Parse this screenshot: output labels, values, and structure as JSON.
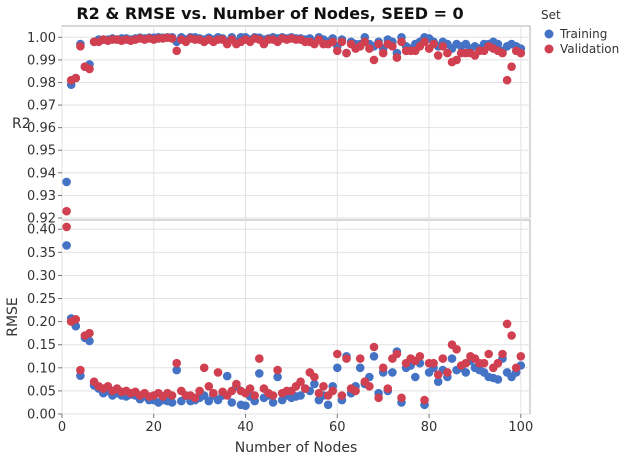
{
  "chart_data": [
    {
      "type": "scatter",
      "title": "R2 & RMSE vs. Number of Nodes, SEED = 0",
      "ylabel": "R2",
      "ylim": [
        0.92,
        1.005
      ],
      "yticks": [
        "1.00",
        "0.99",
        "0.98",
        "0.97",
        "0.96",
        "0.95",
        "0.94",
        "0.93",
        "0.92"
      ],
      "grid": true,
      "legend": {
        "title": "Set",
        "position": "top-right",
        "entries": [
          {
            "name": "Training",
            "color": "#4472C4"
          },
          {
            "name": "Validation",
            "color": "#D04050"
          }
        ]
      },
      "series": [
        {
          "name": "Training",
          "color": "#4472C4",
          "x": [
            1,
            2,
            3,
            4,
            5,
            6,
            7,
            8,
            9,
            10,
            11,
            12,
            13,
            14,
            15,
            16,
            17,
            18,
            19,
            20,
            21,
            22,
            23,
            24,
            25,
            26,
            27,
            28,
            29,
            30,
            31,
            32,
            33,
            34,
            35,
            36,
            37,
            38,
            39,
            40,
            41,
            42,
            43,
            44,
            45,
            46,
            47,
            48,
            49,
            50,
            51,
            52,
            53,
            54,
            55,
            56,
            57,
            58,
            59,
            60,
            61,
            62,
            63,
            64,
            65,
            66,
            67,
            68,
            69,
            70,
            71,
            72,
            73,
            74,
            75,
            76,
            77,
            78,
            79,
            80,
            81,
            82,
            83,
            84,
            85,
            86,
            87,
            88,
            89,
            90,
            91,
            92,
            93,
            94,
            95,
            96,
            97,
            98,
            99,
            100
          ],
          "y": [
            0.936,
            0.979,
            0.982,
            0.997,
            0.987,
            0.988,
            0.998,
            0.999,
            0.999,
            0.999,
            0.9995,
            0.999,
            0.9995,
            0.9995,
            0.999,
            0.9995,
            0.9998,
            0.9995,
            0.9998,
            0.9998,
            1.0,
            0.9998,
            1.0,
            1.0,
            0.998,
            1.0,
            0.999,
            1.0,
            1.0,
            0.9995,
            0.999,
            0.9998,
            0.999,
            1.0,
            0.9995,
            0.998,
            1.0,
            0.998,
            1.0,
            1.0,
            0.999,
            1.0,
            0.9998,
            0.999,
            0.9995,
            1.0,
            0.9995,
            1.0,
            0.9995,
            1.0,
            0.9995,
            0.9995,
            0.999,
            0.9995,
            0.998,
            1.0,
            0.999,
            0.998,
            0.9995,
            0.996,
            0.999,
            0.993,
            0.998,
            0.997,
            0.997,
            1.0,
            0.997,
            0.996,
            0.998,
            0.995,
            0.999,
            0.998,
            0.993,
            1.0,
            0.996,
            0.995,
            0.997,
            0.998,
            1.0,
            0.9995,
            0.998,
            0.996,
            0.998,
            0.997,
            0.995,
            0.997,
            0.996,
            0.997,
            0.995,
            0.996,
            0.995,
            0.997,
            0.997,
            0.998,
            0.997,
            0.994,
            0.996,
            0.997,
            0.996,
            0.995
          ]
        },
        {
          "name": "Validation",
          "color": "#D04050",
          "x": [
            1,
            2,
            3,
            4,
            5,
            6,
            7,
            8,
            9,
            10,
            11,
            12,
            13,
            14,
            15,
            16,
            17,
            18,
            19,
            20,
            21,
            22,
            23,
            24,
            25,
            26,
            27,
            28,
            29,
            30,
            31,
            32,
            33,
            34,
            35,
            36,
            37,
            38,
            39,
            40,
            41,
            42,
            43,
            44,
            45,
            46,
            47,
            48,
            49,
            50,
            51,
            52,
            53,
            54,
            55,
            56,
            57,
            58,
            59,
            60,
            61,
            62,
            63,
            64,
            65,
            66,
            67,
            68,
            69,
            70,
            71,
            72,
            73,
            74,
            75,
            76,
            77,
            78,
            79,
            80,
            81,
            82,
            83,
            84,
            85,
            86,
            87,
            88,
            89,
            90,
            91,
            92,
            93,
            94,
            95,
            96,
            97,
            98,
            99,
            100
          ],
          "y": [
            0.923,
            0.981,
            0.982,
            0.996,
            0.987,
            0.986,
            0.998,
            0.998,
            0.999,
            0.9985,
            0.999,
            0.999,
            0.9985,
            0.999,
            0.9985,
            0.999,
            0.9995,
            0.999,
            0.9995,
            0.999,
            0.9995,
            0.9995,
            0.9998,
            0.9995,
            0.994,
            0.999,
            0.998,
            0.9995,
            0.999,
            0.999,
            0.998,
            0.999,
            0.998,
            0.999,
            0.999,
            0.997,
            0.999,
            0.997,
            0.998,
            0.999,
            0.998,
            0.9995,
            0.999,
            0.997,
            0.999,
            0.999,
            0.998,
            0.9995,
            0.999,
            0.9995,
            0.999,
            0.999,
            0.998,
            0.998,
            0.997,
            0.999,
            0.997,
            0.997,
            0.998,
            0.994,
            0.998,
            0.993,
            0.997,
            0.995,
            0.996,
            0.998,
            0.995,
            0.99,
            0.997,
            0.993,
            0.997,
            0.996,
            0.991,
            0.998,
            0.994,
            0.994,
            0.994,
            0.996,
            0.998,
            0.995,
            0.997,
            0.992,
            0.996,
            0.993,
            0.989,
            0.99,
            0.993,
            0.993,
            0.993,
            0.992,
            0.994,
            0.994,
            0.996,
            0.995,
            0.994,
            0.993,
            0.981,
            0.987,
            0.994,
            0.993
          ]
        }
      ]
    },
    {
      "type": "scatter",
      "ylabel": "RMSE",
      "xlabel": "Number of Nodes",
      "xlim": [
        0,
        102
      ],
      "xticks": [
        "0",
        "20",
        "40",
        "60",
        "80",
        "100"
      ],
      "ylim": [
        0,
        0.42
      ],
      "yticks": [
        "0.40",
        "0.35",
        "0.30",
        "0.25",
        "0.20",
        "0.15",
        "0.10",
        "0.05",
        "0.00"
      ],
      "grid": true,
      "series": [
        {
          "name": "Training",
          "color": "#4472C4",
          "x": [
            1,
            2,
            3,
            4,
            5,
            6,
            7,
            8,
            9,
            10,
            11,
            12,
            13,
            14,
            15,
            16,
            17,
            18,
            19,
            20,
            21,
            22,
            23,
            24,
            25,
            26,
            27,
            28,
            29,
            30,
            31,
            32,
            33,
            34,
            35,
            36,
            37,
            38,
            39,
            40,
            41,
            42,
            43,
            44,
            45,
            46,
            47,
            48,
            49,
            50,
            51,
            52,
            53,
            54,
            55,
            56,
            57,
            58,
            59,
            60,
            61,
            62,
            63,
            64,
            65,
            66,
            67,
            68,
            69,
            70,
            71,
            72,
            73,
            74,
            75,
            76,
            77,
            78,
            79,
            80,
            81,
            82,
            83,
            84,
            85,
            86,
            87,
            88,
            89,
            90,
            91,
            92,
            93,
            94,
            95,
            96,
            97,
            98,
            99,
            100
          ],
          "y": [
            0.365,
            0.207,
            0.19,
            0.083,
            0.165,
            0.158,
            0.062,
            0.055,
            0.045,
            0.05,
            0.04,
            0.045,
            0.04,
            0.038,
            0.042,
            0.04,
            0.032,
            0.038,
            0.03,
            0.03,
            0.025,
            0.03,
            0.028,
            0.025,
            0.095,
            0.028,
            0.04,
            0.028,
            0.03,
            0.035,
            0.04,
            0.028,
            0.04,
            0.03,
            0.04,
            0.082,
            0.025,
            0.06,
            0.02,
            0.018,
            0.038,
            0.028,
            0.088,
            0.035,
            0.04,
            0.025,
            0.08,
            0.03,
            0.04,
            0.035,
            0.038,
            0.04,
            0.055,
            0.05,
            0.065,
            0.03,
            0.04,
            0.02,
            0.06,
            0.1,
            0.03,
            0.125,
            0.045,
            0.06,
            0.1,
            0.065,
            0.08,
            0.125,
            0.045,
            0.09,
            0.05,
            0.09,
            0.135,
            0.025,
            0.1,
            0.105,
            0.08,
            0.11,
            0.02,
            0.09,
            0.1,
            0.07,
            0.095,
            0.08,
            0.12,
            0.095,
            0.1,
            0.09,
            0.115,
            0.1,
            0.095,
            0.09,
            0.08,
            0.078,
            0.075,
            0.12,
            0.09,
            0.08,
            0.09,
            0.105
          ]
        },
        {
          "name": "Validation",
          "color": "#D04050",
          "x": [
            1,
            2,
            3,
            4,
            5,
            6,
            7,
            8,
            9,
            10,
            11,
            12,
            13,
            14,
            15,
            16,
            17,
            18,
            19,
            20,
            21,
            22,
            23,
            24,
            25,
            26,
            27,
            28,
            29,
            30,
            31,
            32,
            33,
            34,
            35,
            36,
            37,
            38,
            39,
            40,
            41,
            42,
            43,
            44,
            45,
            46,
            47,
            48,
            49,
            50,
            51,
            52,
            53,
            54,
            55,
            56,
            57,
            58,
            59,
            60,
            61,
            62,
            63,
            64,
            65,
            66,
            67,
            68,
            69,
            70,
            71,
            72,
            73,
            74,
            75,
            76,
            77,
            78,
            79,
            80,
            81,
            82,
            83,
            84,
            85,
            86,
            87,
            88,
            89,
            90,
            91,
            92,
            93,
            94,
            95,
            96,
            97,
            98,
            99,
            100
          ],
          "y": [
            0.405,
            0.2,
            0.205,
            0.095,
            0.17,
            0.175,
            0.07,
            0.06,
            0.055,
            0.06,
            0.05,
            0.055,
            0.048,
            0.05,
            0.045,
            0.048,
            0.04,
            0.045,
            0.038,
            0.04,
            0.045,
            0.038,
            0.045,
            0.04,
            0.11,
            0.05,
            0.04,
            0.04,
            0.035,
            0.05,
            0.1,
            0.06,
            0.045,
            0.09,
            0.048,
            0.04,
            0.05,
            0.065,
            0.05,
            0.045,
            0.055,
            0.04,
            0.12,
            0.055,
            0.045,
            0.04,
            0.095,
            0.045,
            0.05,
            0.05,
            0.06,
            0.07,
            0.055,
            0.09,
            0.08,
            0.045,
            0.06,
            0.04,
            0.05,
            0.13,
            0.04,
            0.12,
            0.055,
            0.05,
            0.12,
            0.07,
            0.06,
            0.145,
            0.035,
            0.1,
            0.055,
            0.12,
            0.13,
            0.035,
            0.11,
            0.12,
            0.115,
            0.125,
            0.03,
            0.11,
            0.11,
            0.085,
            0.12,
            0.09,
            0.15,
            0.14,
            0.105,
            0.11,
            0.125,
            0.12,
            0.11,
            0.11,
            0.13,
            0.1,
            0.11,
            0.13,
            0.195,
            0.17,
            0.1,
            0.125
          ]
        }
      ]
    }
  ]
}
